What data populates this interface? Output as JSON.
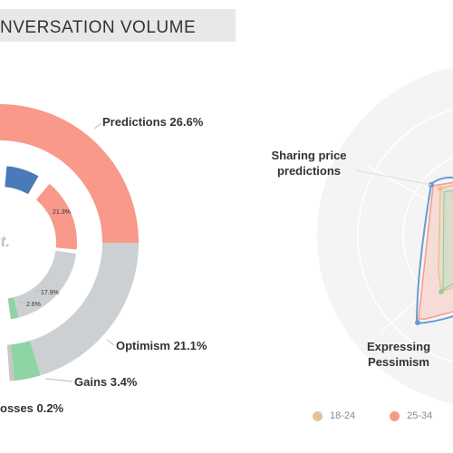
{
  "header": {
    "title": "NVERSATION VOLUME"
  },
  "chart_data": [
    {
      "type": "pie",
      "subtype": "nested-donut",
      "center_label": "Oct.",
      "outer_ring": [
        {
          "label": "Predictions 26.6%",
          "value": 26.6,
          "color": "#f8998a"
        },
        {
          "label": "Optimism 21.1%",
          "value": 21.1,
          "color": "#cdd0d2"
        },
        {
          "label": "Gains 3.4%",
          "value": 3.4,
          "color": "#8fd4a4"
        },
        {
          "label": "osses 0.2%",
          "value": 0.2,
          "color": "#c7c7c7"
        }
      ],
      "inner_ring": [
        {
          "label": "21.3%",
          "value": 21.3,
          "color": "#f8998a"
        },
        {
          "label": "17.9%",
          "value": 17.9,
          "color": "#cdd0d2"
        },
        {
          "label": "2.6%",
          "value": 2.6,
          "color": "#8fd4a4"
        },
        {
          "label": "",
          "value": 0,
          "color": "#4a7ab8"
        }
      ]
    },
    {
      "type": "radar",
      "axes": [
        "Sharing price\npredictions",
        "Expressing\nPessimism"
      ],
      "legend": [
        {
          "name": "18-24",
          "color": "#e8c19a"
        },
        {
          "name": "25-34",
          "color": "#f8998a"
        }
      ],
      "outline_color": "#6a9cd0"
    }
  ]
}
